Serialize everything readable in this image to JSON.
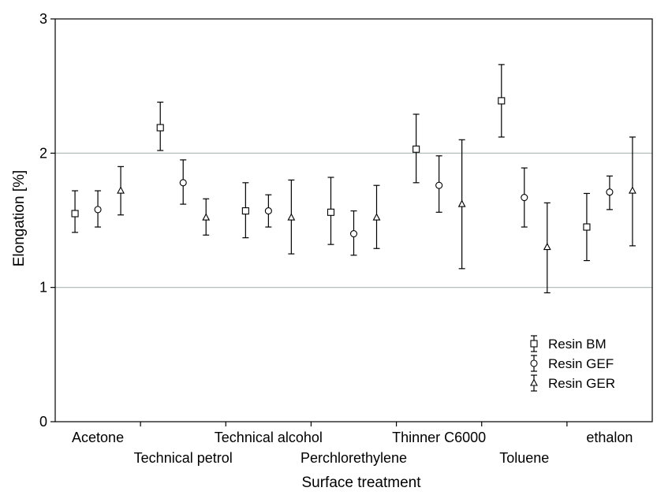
{
  "chart_data": {
    "type": "scatter",
    "xlabel": "Surface treatment",
    "ylabel": "Elongation  [%]",
    "ylim": [
      0,
      3
    ],
    "yticks": [
      "0",
      "1",
      "2",
      "3"
    ],
    "grid": "horizontal at 1 and 2",
    "legend_position": "bottom-right",
    "categories": [
      "Acetone",
      "Technical petrol",
      "Technical alcohol",
      "Perchlorethylene",
      "Thinner C6000",
      "Toluene",
      "ethalon"
    ],
    "series": [
      {
        "name": "Resin BM",
        "marker": "square",
        "values": [
          1.55,
          2.19,
          1.57,
          1.56,
          2.03,
          2.39,
          1.45
        ],
        "lower": [
          1.41,
          2.02,
          1.37,
          1.32,
          1.78,
          2.12,
          1.2
        ],
        "upper": [
          1.72,
          2.38,
          1.78,
          1.82,
          2.29,
          2.66,
          1.7
        ]
      },
      {
        "name": "Resin GEF",
        "marker": "circle",
        "values": [
          1.58,
          1.78,
          1.57,
          1.4,
          1.76,
          1.67,
          1.71
        ],
        "lower": [
          1.45,
          1.62,
          1.45,
          1.24,
          1.56,
          1.45,
          1.58
        ],
        "upper": [
          1.72,
          1.95,
          1.69,
          1.57,
          1.98,
          1.89,
          1.83
        ]
      },
      {
        "name": "Resin GER",
        "marker": "triangle",
        "values": [
          1.72,
          1.52,
          1.52,
          1.52,
          1.62,
          1.3,
          1.72
        ],
        "lower": [
          1.54,
          1.39,
          1.25,
          1.29,
          1.14,
          0.96,
          1.31
        ],
        "upper": [
          1.9,
          1.66,
          1.8,
          1.76,
          2.1,
          1.63,
          2.12
        ]
      }
    ]
  }
}
